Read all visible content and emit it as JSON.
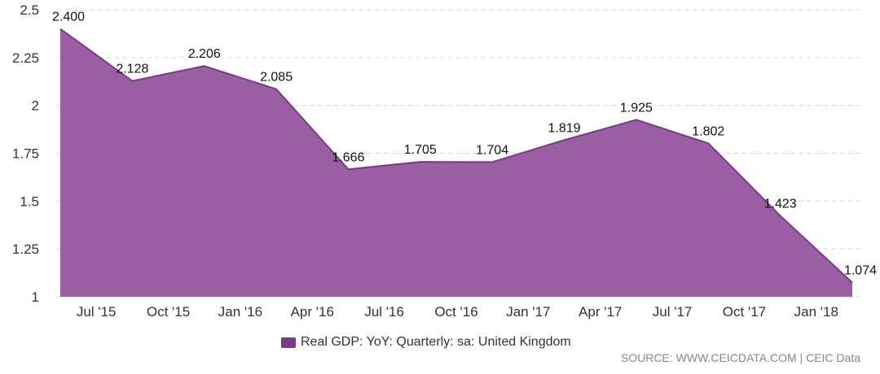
{
  "chart_data": {
    "type": "area",
    "title": "",
    "xlabel": "",
    "ylabel": "",
    "ylim": [
      1,
      2.5
    ],
    "yticks": [
      1,
      1.25,
      1.5,
      1.75,
      2,
      2.25,
      2.5
    ],
    "ytick_labels": [
      "1",
      "1.25",
      "1.5",
      "1.75",
      "2",
      "2.25",
      "2.5"
    ],
    "grid": true,
    "x_tick_labels": [
      "Jul '15",
      "Oct '15",
      "Jan '16",
      "Apr '16",
      "Jul '16",
      "Oct '16",
      "Jan '17",
      "Apr '17",
      "Jul '17",
      "Oct '17",
      "Jan '18"
    ],
    "series": [
      {
        "name": "Real GDP: YoY: Quarterly: sa: United Kingdom",
        "color": "#7a3a88",
        "fill": "#9a5fa2",
        "x": [
          "2015-06",
          "2015-09",
          "2015-12",
          "2016-03",
          "2016-06",
          "2016-09",
          "2016-12",
          "2017-03",
          "2017-06",
          "2017-09",
          "2017-12",
          "2018-03"
        ],
        "values": [
          2.4,
          2.128,
          2.206,
          2.085,
          1.666,
          1.705,
          1.704,
          1.819,
          1.925,
          1.802,
          1.423,
          1.074
        ],
        "labels": [
          "2.400",
          "2.128",
          "2.206",
          "2.085",
          "1.666",
          "1.705",
          "1.704",
          "1.819",
          "1.925",
          "1.802",
          "1.423",
          "1.074"
        ]
      }
    ],
    "legend_position": "bottom-center"
  },
  "source_text": "SOURCE: WWW.CEICDATA.COM | CEIC Data"
}
